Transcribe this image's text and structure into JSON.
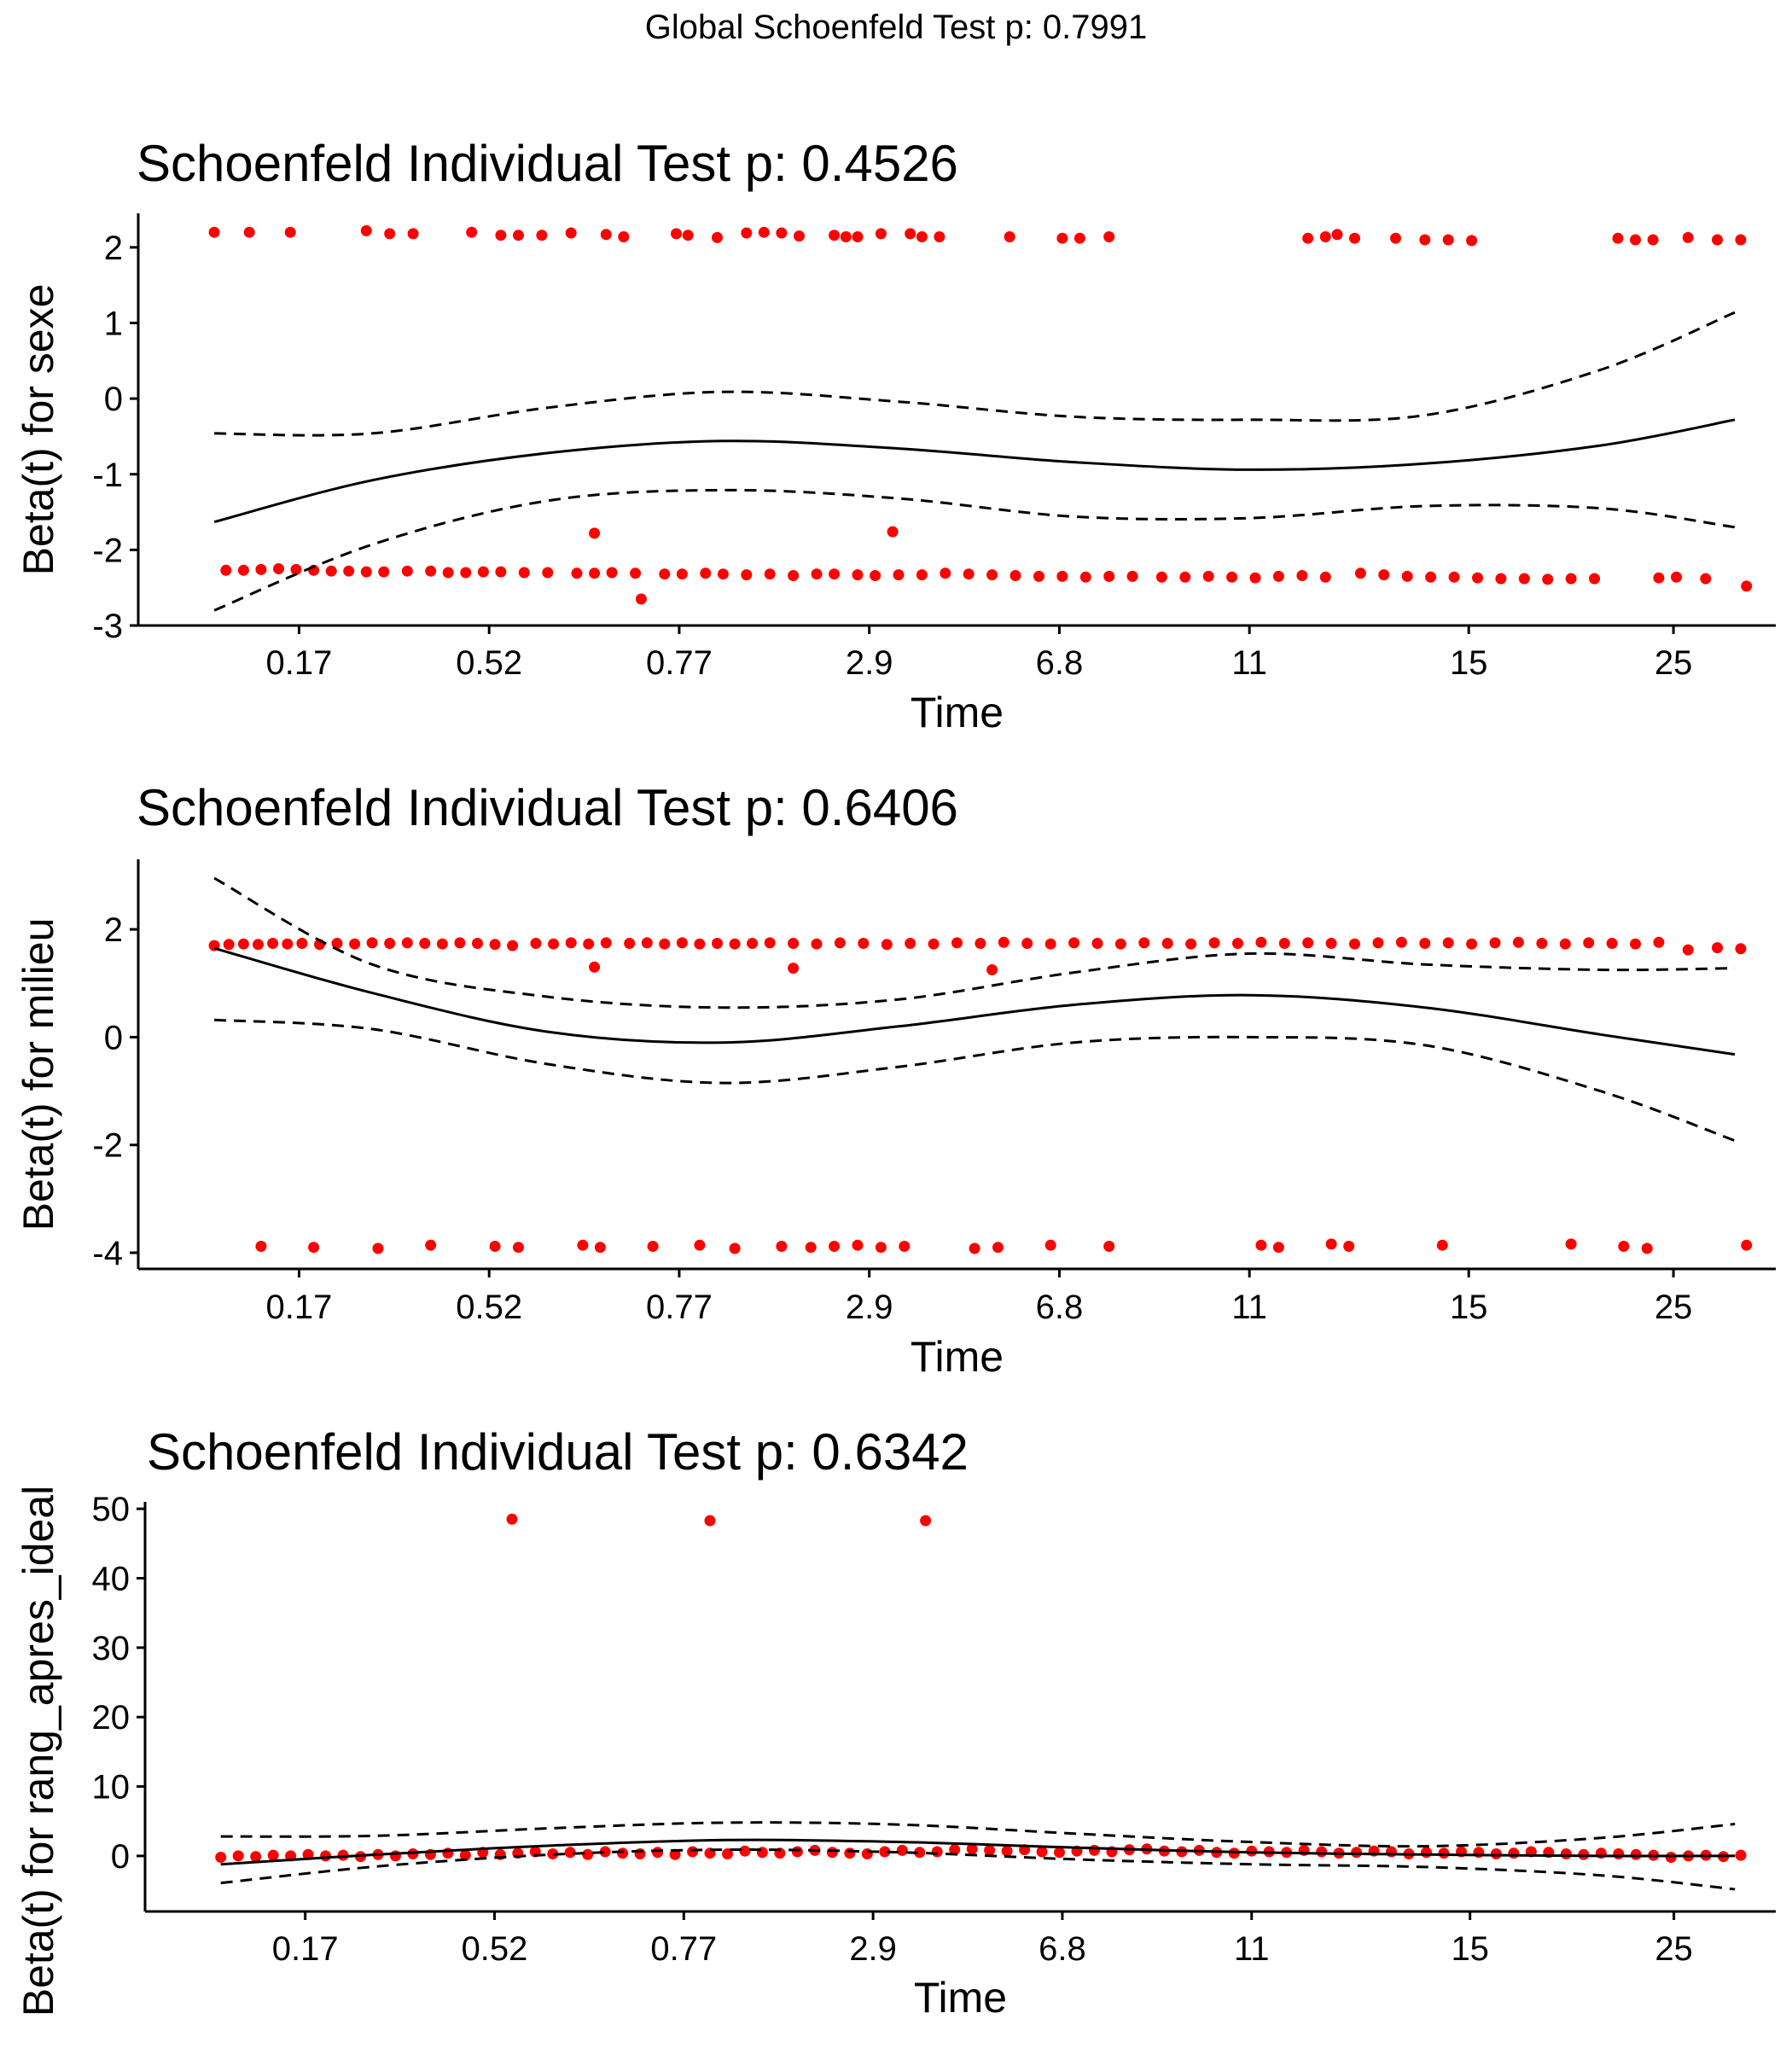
{
  "figure": {
    "global_title": "Global Schoenfeld Test p: 0.7991",
    "colors": {
      "points": "#ff0000",
      "lines": "#000000",
      "axis": "#000000",
      "background": "#ffffff"
    }
  },
  "chart_data": [
    {
      "type": "scatter",
      "title": "Schoenfeld Individual Test p: 0.4526",
      "xlabel": "Time",
      "ylabel": "Beta(t) for sexe",
      "x_tick_labels": [
        "0.17",
        "0.52",
        "0.77",
        "2.9",
        "6.8",
        "11",
        "15",
        "25"
      ],
      "x_range": [
        0,
        28
      ],
      "x_tick_positions": [
        2.75,
        6.0,
        9.25,
        12.5,
        15.75,
        19.0,
        22.75,
        26.25
      ],
      "ylim": [
        -3,
        2.45
      ],
      "y_ticks": [
        -3,
        -2,
        -1,
        0,
        1,
        2
      ],
      "grid": false,
      "fit_x": [
        1.3,
        4,
        7,
        10,
        13,
        16,
        19,
        22,
        25,
        27.3
      ],
      "fit": [
        -1.63,
        -1.08,
        -0.72,
        -0.56,
        -0.66,
        -0.84,
        -0.94,
        -0.86,
        -0.62,
        -0.28
      ],
      "upper": [
        -0.46,
        -0.46,
        -0.12,
        0.09,
        -0.04,
        -0.24,
        -0.28,
        -0.22,
        0.38,
        1.14
      ],
      "lower": [
        -2.8,
        -1.93,
        -1.35,
        -1.21,
        -1.32,
        -1.56,
        -1.58,
        -1.42,
        -1.45,
        -1.7
      ],
      "points": {
        "x": [
          1.3,
          1.9,
          2.6,
          3.9,
          4.3,
          4.7,
          5.7,
          6.2,
          6.5,
          6.9,
          7.4,
          8.0,
          8.3,
          9.2,
          9.4,
          9.9,
          10.4,
          10.7,
          11.0,
          11.3,
          11.9,
          12.1,
          12.3,
          12.7,
          13.2,
          13.4,
          13.7,
          14.9,
          15.8,
          16.1,
          16.6,
          20.0,
          20.3,
          20.5,
          20.8,
          21.5,
          22.0,
          22.4,
          22.8,
          25.3,
          25.6,
          25.9,
          26.5,
          27.0,
          27.4,
          1.5,
          1.8,
          2.1,
          2.4,
          2.7,
          3.0,
          3.3,
          3.6,
          3.9,
          4.2,
          4.6,
          5.0,
          5.3,
          5.6,
          5.9,
          6.2,
          6.6,
          7.0,
          7.5,
          7.8,
          8.1,
          8.5,
          9.0,
          9.3,
          9.7,
          10.0,
          10.4,
          10.8,
          11.2,
          11.6,
          11.9,
          12.3,
          12.6,
          13.0,
          13.4,
          13.8,
          14.2,
          14.6,
          15.0,
          15.4,
          15.8,
          16.2,
          16.6,
          17.0,
          17.5,
          17.9,
          18.3,
          18.7,
          19.1,
          19.5,
          19.9,
          20.3,
          20.9,
          21.3,
          21.7,
          22.1,
          22.5,
          22.9,
          23.3,
          23.7,
          24.1,
          24.5,
          24.9,
          26.0,
          26.3,
          26.8,
          27.5,
          8.6,
          12.9,
          7.8
        ],
        "y": [
          2.2,
          2.2,
          2.2,
          2.22,
          2.18,
          2.18,
          2.2,
          2.16,
          2.16,
          2.16,
          2.19,
          2.17,
          2.14,
          2.18,
          2.16,
          2.13,
          2.19,
          2.2,
          2.19,
          2.15,
          2.16,
          2.14,
          2.14,
          2.18,
          2.18,
          2.14,
          2.14,
          2.14,
          2.12,
          2.12,
          2.14,
          2.12,
          2.14,
          2.17,
          2.12,
          2.12,
          2.1,
          2.1,
          2.09,
          2.12,
          2.1,
          2.1,
          2.13,
          2.1,
          2.1,
          -2.27,
          -2.27,
          -2.26,
          -2.25,
          -2.26,
          -2.27,
          -2.28,
          -2.28,
          -2.29,
          -2.29,
          -2.28,
          -2.28,
          -2.3,
          -2.3,
          -2.29,
          -2.29,
          -2.3,
          -2.3,
          -2.31,
          -2.31,
          -2.3,
          -2.31,
          -2.32,
          -2.32,
          -2.31,
          -2.32,
          -2.33,
          -2.32,
          -2.34,
          -2.32,
          -2.32,
          -2.33,
          -2.34,
          -2.33,
          -2.33,
          -2.31,
          -2.32,
          -2.33,
          -2.34,
          -2.35,
          -2.35,
          -2.36,
          -2.35,
          -2.35,
          -2.36,
          -2.36,
          -2.35,
          -2.36,
          -2.37,
          -2.35,
          -2.34,
          -2.36,
          -2.31,
          -2.33,
          -2.35,
          -2.36,
          -2.36,
          -2.37,
          -2.38,
          -2.38,
          -2.39,
          -2.38,
          -2.38,
          -2.37,
          -2.36,
          -2.38,
          -2.48,
          -2.65,
          -1.76,
          -1.78
        ]
      }
    },
    {
      "type": "scatter",
      "title": "Schoenfeld Individual Test p: 0.6406",
      "xlabel": "Time",
      "ylabel": "Beta(t) for milieu",
      "x_tick_labels": [
        "0.17",
        "0.52",
        "0.77",
        "2.9",
        "6.8",
        "11",
        "15",
        "25"
      ],
      "x_range": [
        0,
        28
      ],
      "x_tick_positions": [
        2.75,
        6.0,
        9.25,
        12.5,
        15.75,
        19.0,
        22.75,
        26.25
      ],
      "ylim": [
        -4.3,
        3.3
      ],
      "y_ticks": [
        -4,
        -2,
        0,
        2
      ],
      "grid": false,
      "fit_x": [
        1.3,
        4,
        7,
        10,
        13,
        16,
        19,
        22,
        25,
        27.3
      ],
      "fit": [
        1.65,
        0.82,
        0.1,
        -0.1,
        0.2,
        0.6,
        0.78,
        0.55,
        0.05,
        -0.32
      ],
      "upper": [
        2.95,
        1.35,
        0.75,
        0.55,
        0.7,
        1.2,
        1.55,
        1.35,
        1.25,
        1.28
      ],
      "lower": [
        0.32,
        0.15,
        -0.5,
        -0.85,
        -0.55,
        -0.1,
        0.0,
        -0.15,
        -1.0,
        -1.92
      ],
      "points": {
        "x": [
          1.3,
          1.55,
          1.8,
          2.05,
          2.3,
          2.55,
          2.8,
          3.1,
          3.4,
          3.7,
          4.0,
          4.3,
          4.6,
          4.9,
          5.2,
          5.5,
          5.8,
          6.1,
          6.4,
          6.8,
          7.1,
          7.4,
          7.7,
          8.0,
          8.4,
          8.7,
          9.0,
          9.3,
          9.6,
          9.9,
          10.2,
          10.5,
          10.8,
          11.2,
          11.6,
          12.0,
          12.4,
          12.8,
          13.2,
          13.6,
          14.0,
          14.4,
          14.8,
          15.2,
          15.6,
          16.0,
          16.4,
          16.8,
          17.2,
          17.6,
          18.0,
          18.4,
          18.8,
          19.2,
          19.6,
          20.0,
          20.4,
          20.8,
          21.2,
          21.6,
          22.0,
          22.4,
          22.8,
          23.2,
          23.6,
          24.0,
          24.4,
          24.8,
          25.2,
          25.6,
          26.0,
          26.5,
          27.0,
          27.4,
          7.8,
          11.2,
          14.6,
          2.1,
          3.0,
          4.1,
          5.0,
          6.1,
          6.5,
          7.6,
          7.9,
          8.8,
          9.6,
          10.2,
          11.0,
          11.5,
          11.9,
          12.3,
          12.7,
          13.1,
          14.3,
          14.7,
          15.6,
          16.6,
          19.2,
          19.5,
          20.4,
          20.7,
          22.3,
          24.5,
          25.4,
          25.8,
          27.5
        ],
        "y": [
          1.7,
          1.72,
          1.73,
          1.72,
          1.74,
          1.73,
          1.74,
          1.72,
          1.74,
          1.73,
          1.75,
          1.74,
          1.75,
          1.74,
          1.73,
          1.75,
          1.74,
          1.72,
          1.7,
          1.74,
          1.73,
          1.75,
          1.73,
          1.75,
          1.74,
          1.75,
          1.73,
          1.75,
          1.73,
          1.74,
          1.73,
          1.74,
          1.75,
          1.74,
          1.73,
          1.75,
          1.74,
          1.72,
          1.74,
          1.73,
          1.75,
          1.74,
          1.76,
          1.74,
          1.73,
          1.75,
          1.74,
          1.73,
          1.75,
          1.74,
          1.73,
          1.75,
          1.74,
          1.76,
          1.74,
          1.75,
          1.74,
          1.73,
          1.75,
          1.76,
          1.74,
          1.75,
          1.73,
          1.75,
          1.76,
          1.74,
          1.73,
          1.75,
          1.74,
          1.73,
          1.76,
          1.62,
          1.66,
          1.64,
          1.3,
          1.28,
          1.25,
          -3.88,
          -3.9,
          -3.92,
          -3.86,
          -3.88,
          -3.9,
          -3.86,
          -3.9,
          -3.88,
          -3.86,
          -3.92,
          -3.88,
          -3.9,
          -3.88,
          -3.86,
          -3.9,
          -3.88,
          -3.92,
          -3.9,
          -3.86,
          -3.88,
          -3.86,
          -3.9,
          -3.84,
          -3.88,
          -3.86,
          -3.84,
          -3.88,
          -3.92,
          -3.86
        ]
      }
    },
    {
      "type": "scatter",
      "title": "Schoenfeld Individual Test p: 0.6342",
      "xlabel": "Time",
      "ylabel": "Beta(t) for rang_apres_ideal",
      "x_tick_labels": [
        "0.17",
        "0.52",
        "0.77",
        "2.9",
        "6.8",
        "11",
        "15",
        "25"
      ],
      "x_range": [
        0,
        28
      ],
      "x_tick_positions": [
        2.75,
        6.0,
        9.25,
        12.5,
        15.75,
        19.0,
        22.75,
        26.25
      ],
      "ylim": [
        -8,
        51
      ],
      "y_ticks": [
        0,
        10,
        20,
        30,
        40,
        50
      ],
      "grid": false,
      "fit_x": [
        1.3,
        4,
        7,
        10,
        13,
        16,
        19,
        22,
        25,
        27.3
      ],
      "fit": [
        -1.2,
        0.2,
        1.5,
        2.3,
        2.0,
        1.2,
        0.5,
        0.2,
        0.0,
        0.0
      ],
      "upper": [
        2.8,
        2.9,
        4.0,
        4.8,
        4.5,
        3.2,
        2.0,
        1.4,
        2.6,
        4.6
      ],
      "lower": [
        -3.9,
        -1.5,
        0.2,
        0.9,
        0.5,
        -0.5,
        -1.2,
        -1.6,
        -2.8,
        -4.8
      ],
      "points": {
        "x": [
          1.3,
          1.6,
          1.9,
          2.2,
          2.5,
          2.8,
          3.1,
          3.4,
          3.7,
          4.0,
          4.3,
          4.6,
          4.9,
          5.2,
          5.5,
          5.8,
          6.1,
          6.4,
          6.7,
          7.0,
          7.3,
          7.6,
          7.9,
          8.2,
          8.5,
          8.8,
          9.1,
          9.4,
          9.7,
          10.0,
          10.3,
          10.6,
          10.9,
          11.2,
          11.5,
          11.8,
          12.1,
          12.4,
          12.7,
          13.0,
          13.3,
          13.6,
          13.9,
          14.2,
          14.5,
          14.8,
          15.1,
          15.4,
          15.7,
          16.0,
          16.3,
          16.6,
          16.9,
          17.2,
          17.5,
          17.8,
          18.1,
          18.4,
          18.7,
          19.0,
          19.3,
          19.6,
          19.9,
          20.2,
          20.5,
          20.8,
          21.1,
          21.4,
          21.7,
          22.0,
          22.3,
          22.6,
          22.9,
          23.2,
          23.5,
          23.8,
          24.1,
          24.4,
          24.7,
          25.0,
          25.3,
          25.6,
          25.9,
          26.2,
          26.5,
          26.8,
          27.1,
          27.4,
          6.3,
          9.7,
          13.4
        ],
        "y": [
          -0.2,
          0.0,
          -0.1,
          0.1,
          0.0,
          0.2,
          0.0,
          0.1,
          -0.1,
          0.2,
          0.0,
          0.3,
          0.2,
          0.4,
          0.1,
          0.5,
          0.2,
          0.4,
          0.6,
          0.3,
          0.5,
          0.2,
          0.6,
          0.4,
          0.3,
          0.5,
          0.2,
          0.6,
          0.4,
          0.3,
          0.7,
          0.5,
          0.4,
          0.6,
          0.8,
          0.5,
          0.4,
          0.3,
          0.6,
          0.8,
          0.5,
          0.6,
          0.9,
          1.0,
          0.8,
          0.7,
          0.9,
          0.6,
          0.5,
          0.7,
          0.8,
          0.6,
          0.9,
          1.0,
          0.7,
          0.6,
          0.8,
          0.5,
          0.4,
          0.7,
          0.6,
          0.5,
          0.8,
          0.6,
          0.4,
          0.5,
          0.7,
          0.6,
          0.3,
          0.5,
          0.4,
          0.6,
          0.5,
          0.3,
          0.4,
          0.6,
          0.5,
          0.3,
          0.2,
          0.4,
          0.3,
          0.2,
          0.1,
          -0.2,
          0.0,
          0.1,
          -0.1,
          0.1,
          48.5,
          48.3,
          48.3
        ]
      }
    }
  ]
}
